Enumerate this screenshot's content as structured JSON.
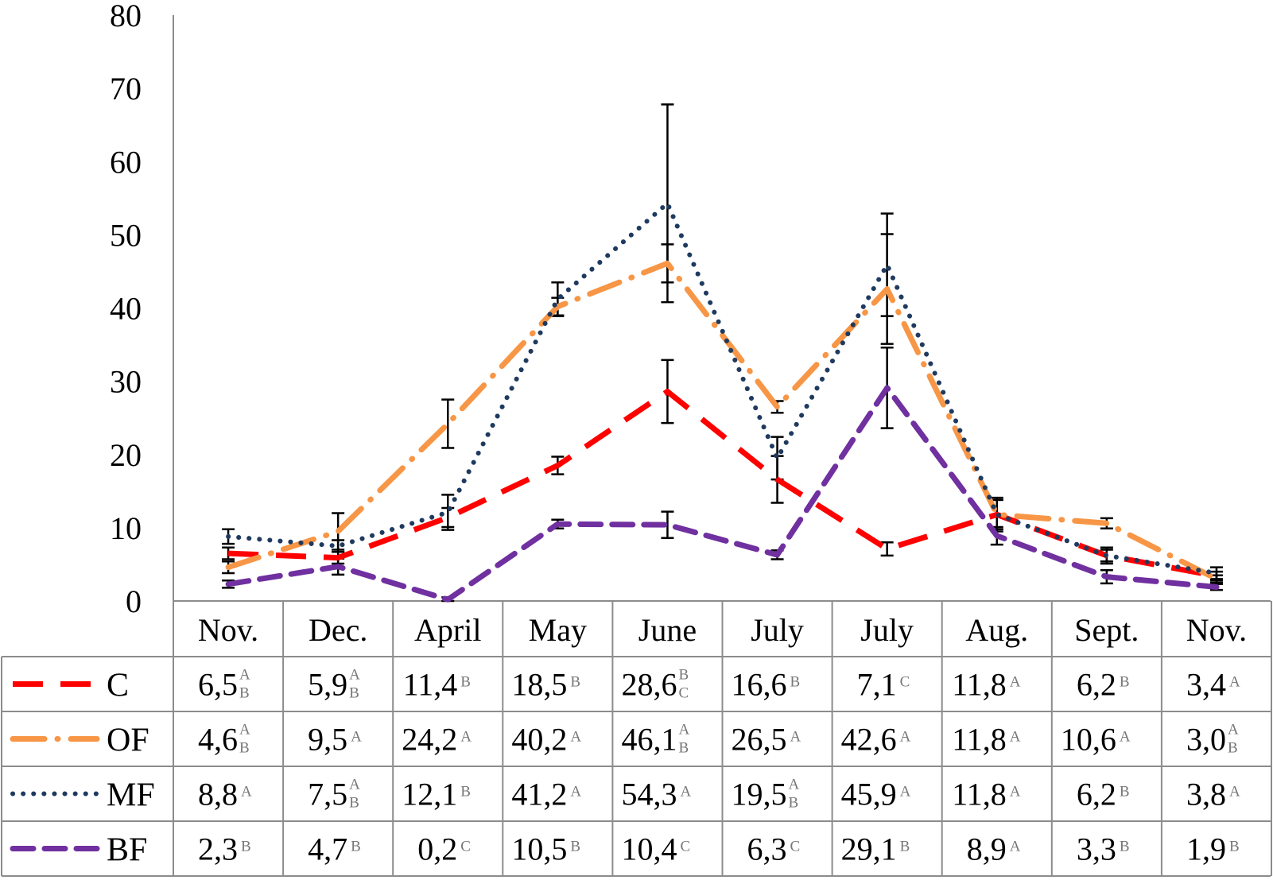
{
  "chart_data": {
    "type": "line",
    "ylim": [
      0,
      80
    ],
    "yticks": [
      0,
      10,
      20,
      30,
      40,
      50,
      60,
      70,
      80
    ],
    "categories": [
      "Nov.",
      "Dec.",
      "April",
      "May",
      "June",
      "July",
      "July",
      "Aug.",
      "Sept.",
      "Nov."
    ],
    "series": [
      {
        "name": "C",
        "color": "#ff0000",
        "style": "long-dash",
        "values": [
          6.5,
          5.9,
          11.4,
          18.5,
          28.6,
          16.6,
          7.1,
          11.8,
          6.2,
          3.4
        ],
        "errors": [
          0.8,
          0.8,
          1.3,
          1.2,
          4.3,
          3.2,
          0.9,
          2.0,
          0.8,
          0.6
        ],
        "labels": [
          "6,5",
          "5,9",
          "11,4",
          "18,5",
          "28,6",
          "16,6",
          "7,1",
          "11,8",
          "6,2",
          "3,4"
        ],
        "letters": [
          "AB",
          "AB",
          "B",
          "B",
          "BC",
          "B",
          "C",
          "A",
          "B",
          "A"
        ]
      },
      {
        "name": "OF",
        "color": "#f79646",
        "style": "long-dash-dot",
        "values": [
          4.6,
          9.5,
          24.2,
          40.2,
          46.1,
          26.5,
          42.6,
          11.8,
          10.6,
          3.0
        ],
        "errors": [
          0.8,
          2.5,
          3.3,
          1.2,
          2.6,
          0.8,
          7.5,
          2.0,
          0.7,
          0.5
        ],
        "labels": [
          "4,6",
          "9,5",
          "24,2",
          "40,2",
          "46,1",
          "26,5",
          "42,6",
          "11,8",
          "10,6",
          "3,0"
        ],
        "letters": [
          "AB",
          "A",
          "A",
          "A",
          "AB",
          "A",
          "A",
          "A",
          "A",
          "AB"
        ]
      },
      {
        "name": "MF",
        "color": "#1f3a5f",
        "style": "dotted",
        "values": [
          8.8,
          7.5,
          12.1,
          41.2,
          54.3,
          19.5,
          45.9,
          11.8,
          6.2,
          3.8
        ],
        "errors": [
          1.0,
          0.8,
          2.4,
          2.3,
          13.5,
          2.9,
          7.0,
          2.3,
          1.1,
          0.8
        ],
        "labels": [
          "8,8",
          "7,5",
          "12,1",
          "41,2",
          "54,3",
          "19,5",
          "45,9",
          "11,8",
          "6,2",
          "3,8"
        ],
        "letters": [
          "A",
          "AB",
          "B",
          "A",
          "A",
          "AB",
          "A",
          "A",
          "B",
          "A"
        ]
      },
      {
        "name": "BF",
        "color": "#7030a0",
        "style": "dash",
        "values": [
          2.3,
          4.7,
          0.2,
          10.5,
          10.4,
          6.3,
          29.1,
          8.9,
          3.3,
          1.9
        ],
        "errors": [
          0.5,
          1.1,
          0.3,
          0.6,
          1.8,
          0.6,
          5.5,
          1.2,
          0.9,
          0.4
        ],
        "labels": [
          "2,3",
          "4,7",
          "0,2",
          "10,5",
          "10,4",
          "6,3",
          "29,1",
          "8,9",
          "3,3",
          "1,9"
        ],
        "letters": [
          "B",
          "B",
          "C",
          "B",
          "C",
          "C",
          "B",
          "A",
          "B",
          "B"
        ]
      }
    ]
  }
}
